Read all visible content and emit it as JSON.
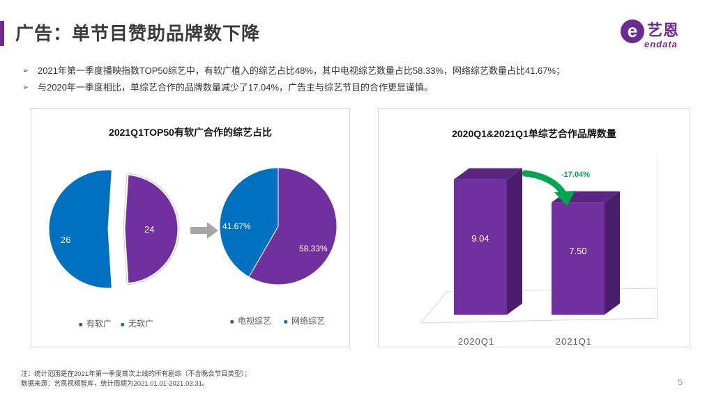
{
  "header": {
    "title": "广告：单节目赞助品牌数下降",
    "logo_text_cn": "艺恩",
    "logo_text_en": "endata",
    "logo_letter": "e"
  },
  "bullets": [
    "2021年第一季度播映指数TOP50综艺中，有软广植入的综艺占比48%，其中电视综艺数量占比58.33%，网络综艺数量占比41.67%；",
    "与2020年一季度相比，单综艺合作的品牌数量减少了17.04%，广告主与综艺节目的合作更显谨慎。"
  ],
  "bullet_marker": "➢",
  "colors": {
    "purple": "#7030a0",
    "blue": "#0070c0",
    "green": "#00a651",
    "accent": "#6a2c91"
  },
  "chart_data": [
    {
      "type": "pie",
      "title": "2021Q1TOP50有软广合作的综艺占比",
      "subcharts": [
        {
          "labels": [
            "有软广",
            "无软广"
          ],
          "values": [
            24,
            26
          ],
          "value_labels": [
            "24",
            "26"
          ],
          "colors": [
            "#7030a0",
            "#0070c0"
          ],
          "exploded": "有软广"
        },
        {
          "labels": [
            "电视综艺",
            "网络综艺"
          ],
          "values": [
            58.33,
            41.67
          ],
          "value_labels": [
            "58.33%",
            "41.67%"
          ],
          "colors": [
            "#7030a0",
            "#0070c0"
          ]
        }
      ],
      "legend_left": [
        "有软广",
        "无软广"
      ],
      "legend_right": [
        "电视综艺",
        "网络综艺"
      ],
      "legend_marker": "■"
    },
    {
      "type": "bar",
      "title": "2020Q1&2021Q1单综艺合作品牌数量",
      "categories": [
        "2020Q1",
        "2021Q1"
      ],
      "values": [
        9.04,
        7.5
      ],
      "value_labels": [
        "9.04",
        "7.50"
      ],
      "annotation": "-17.04%",
      "ylim": [
        0,
        10
      ]
    }
  ],
  "footnote": {
    "line1": "注：统计范围是在2021年第一季度首次上线的所有剧综（不含晚会节目类型）；",
    "line2": "数据来源：艺恩视频智库，统计周期为2021.01.01-2021.03.31。"
  },
  "page_number": "5"
}
